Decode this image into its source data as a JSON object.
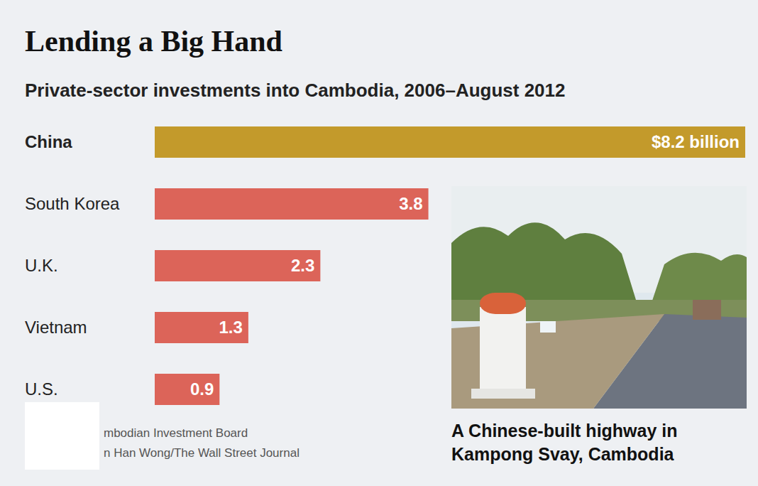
{
  "chart_data": {
    "type": "bar",
    "title": "Lending a Big Hand",
    "subtitle": "Private-sector investments into Cambodia, 2006–August 2012",
    "orientation": "horizontal",
    "categories": [
      "China",
      "South Korea",
      "U.K.",
      "Vietnam",
      "U.S."
    ],
    "values": [
      8.2,
      3.8,
      2.3,
      1.3,
      0.9
    ],
    "value_labels": [
      "$8.2 billion",
      "3.8",
      "2.3",
      "1.3",
      "0.9"
    ],
    "colors": [
      "#c39a2b",
      "#dc6459",
      "#dc6459",
      "#dc6459",
      "#dc6459"
    ],
    "xlim": [
      0,
      8.2
    ],
    "data_labels": true,
    "tick_labels": "y",
    "grid": false,
    "caption": "A Chinese-built highway in Kampong Svay, Cambodia",
    "source": [
      "mbodian Investment Board",
      "n Han Wong/The Wall Street Journal"
    ]
  }
}
